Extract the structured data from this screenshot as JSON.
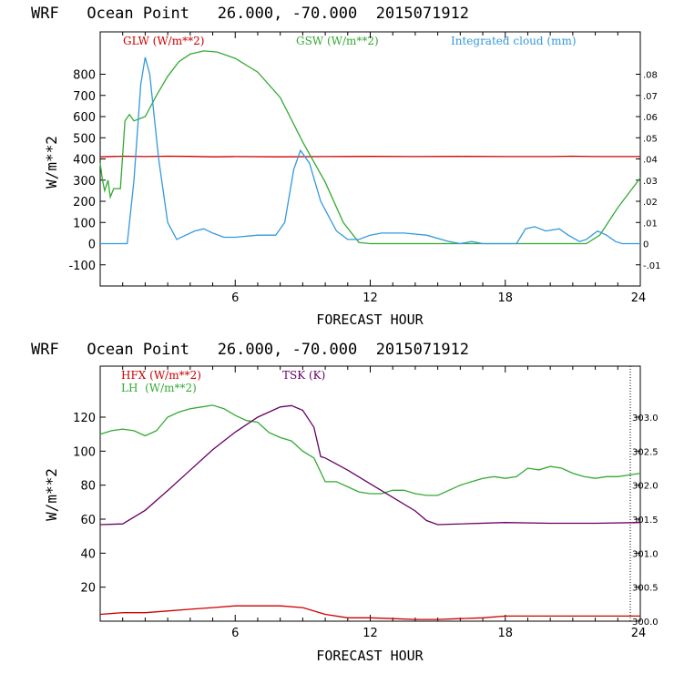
{
  "chart_data": [
    {
      "type": "line",
      "title": "WRF   Ocean Point   26.000, -70.000  2015071912",
      "xlabel": "FORECAST HOUR",
      "ylabel": "W/m**2",
      "xlim": [
        0,
        24
      ],
      "ylim": [
        -200,
        1000
      ],
      "y2lim": [
        -0.02,
        0.1
      ],
      "x_ticks": [
        "6",
        "12",
        "18",
        "24"
      ],
      "y_ticks": [
        "-100",
        "0",
        "100",
        "200",
        "300",
        "400",
        "500",
        "600",
        "700",
        "800"
      ],
      "y2_ticks": [
        "-.01",
        "0",
        ".01",
        ".02",
        ".03",
        ".04",
        ".05",
        ".06",
        ".07",
        ".08"
      ],
      "series": [
        {
          "name": "GLW (W/m**2)",
          "color": "#cc0000",
          "axis": "left",
          "points": [
            [
              0,
              410
            ],
            [
              1,
              413
            ],
            [
              2,
              411
            ],
            [
              3,
              413
            ],
            [
              4,
              412
            ],
            [
              5,
              410
            ],
            [
              6,
              411
            ],
            [
              8,
              410
            ],
            [
              10,
              411
            ],
            [
              12,
              412
            ],
            [
              14,
              411
            ],
            [
              16,
              412
            ],
            [
              18,
              411
            ],
            [
              20,
              411
            ],
            [
              21,
              413
            ],
            [
              22,
              411
            ],
            [
              24,
              411
            ]
          ]
        },
        {
          "name": "GSW (W/m**2)",
          "color": "#33aa33",
          "axis": "left",
          "points": [
            [
              0,
              380
            ],
            [
              0.1,
              300
            ],
            [
              0.2,
              250
            ],
            [
              0.35,
              300
            ],
            [
              0.45,
              220
            ],
            [
              0.6,
              260
            ],
            [
              0.9,
              260
            ],
            [
              1.1,
              580
            ],
            [
              1.3,
              610
            ],
            [
              1.5,
              580
            ],
            [
              2,
              600
            ],
            [
              2.5,
              700
            ],
            [
              3,
              790
            ],
            [
              3.5,
              860
            ],
            [
              4,
              895
            ],
            [
              4.6,
              910
            ],
            [
              5.2,
              905
            ],
            [
              6,
              875
            ],
            [
              7,
              810
            ],
            [
              8,
              690
            ],
            [
              9,
              480
            ],
            [
              10,
              290
            ],
            [
              10.8,
              100
            ],
            [
              11.5,
              5
            ],
            [
              12,
              0
            ],
            [
              21.6,
              0
            ],
            [
              22.2,
              40
            ],
            [
              23,
              170
            ],
            [
              24,
              310
            ]
          ]
        },
        {
          "name": "Integrated cloud (mm)",
          "color": "#3399dd",
          "axis": "right",
          "points": [
            [
              0,
              0
            ],
            [
              1.2,
              0
            ],
            [
              1.5,
              0.03
            ],
            [
              1.8,
              0.075
            ],
            [
              2,
              0.088
            ],
            [
              2.2,
              0.08
            ],
            [
              2.6,
              0.04
            ],
            [
              3,
              0.01
            ],
            [
              3.4,
              0.002
            ],
            [
              3.8,
              0.004
            ],
            [
              4.2,
              0.006
            ],
            [
              4.6,
              0.007
            ],
            [
              5,
              0.005
            ],
            [
              5.5,
              0.003
            ],
            [
              6,
              0.003
            ],
            [
              7,
              0.004
            ],
            [
              7.8,
              0.004
            ],
            [
              8.2,
              0.01
            ],
            [
              8.6,
              0.035
            ],
            [
              8.9,
              0.044
            ],
            [
              9.3,
              0.038
            ],
            [
              9.8,
              0.02
            ],
            [
              10.5,
              0.006
            ],
            [
              11,
              0.002
            ],
            [
              11.5,
              0.002
            ],
            [
              12,
              0.004
            ],
            [
              12.5,
              0.005
            ],
            [
              13.5,
              0.005
            ],
            [
              14.5,
              0.004
            ],
            [
              15.5,
              0.001
            ],
            [
              16,
              0
            ],
            [
              16.5,
              0.001
            ],
            [
              17,
              0
            ],
            [
              18.5,
              0
            ],
            [
              18.9,
              0.007
            ],
            [
              19.3,
              0.008
            ],
            [
              19.8,
              0.006
            ],
            [
              20.4,
              0.007
            ],
            [
              20.8,
              0.004
            ],
            [
              21.3,
              0.001
            ],
            [
              21.6,
              0.002
            ],
            [
              22.1,
              0.006
            ],
            [
              22.5,
              0.004
            ],
            [
              22.9,
              0.001
            ],
            [
              23.2,
              0
            ],
            [
              24,
              0
            ]
          ]
        }
      ]
    },
    {
      "type": "line",
      "title": "WRF   Ocean Point   26.000, -70.000  2015071912",
      "xlabel": "FORECAST HOUR",
      "ylabel": "W/m**2",
      "xlim": [
        0,
        24
      ],
      "ylim": [
        0,
        150
      ],
      "y2lim": [
        300,
        303.75
      ],
      "x_ticks": [
        "6",
        "12",
        "18",
        "24"
      ],
      "y_ticks": [
        "20",
        "40",
        "60",
        "80",
        "100",
        "120"
      ],
      "y2_ticks": [
        "300.0",
        "300.5",
        "301.0",
        "301.5",
        "302.0",
        "302.5",
        "303.0"
      ],
      "series": [
        {
          "name": "HFX (W/m**2)",
          "color": "#cc0000",
          "axis": "left",
          "points": [
            [
              0,
              4
            ],
            [
              1,
              5
            ],
            [
              2,
              5
            ],
            [
              3,
              6
            ],
            [
              4,
              7
            ],
            [
              5,
              8
            ],
            [
              6,
              9
            ],
            [
              7,
              9
            ],
            [
              8,
              9
            ],
            [
              9,
              8
            ],
            [
              10,
              4
            ],
            [
              11,
              2
            ],
            [
              12,
              2
            ],
            [
              13,
              1.5
            ],
            [
              14,
              1
            ],
            [
              15,
              1
            ],
            [
              16,
              1.5
            ],
            [
              17,
              2
            ],
            [
              18,
              3
            ],
            [
              20,
              3
            ],
            [
              22,
              3
            ],
            [
              23,
              3
            ],
            [
              24,
              3
            ]
          ]
        },
        {
          "name": "LH (W/m**2)",
          "color": "#33aa33",
          "axis": "left",
          "points": [
            [
              0,
              110
            ],
            [
              0.5,
              112
            ],
            [
              1,
              113
            ],
            [
              1.5,
              112
            ],
            [
              2,
              109
            ],
            [
              2.5,
              112
            ],
            [
              3,
              120
            ],
            [
              3.5,
              123
            ],
            [
              4,
              125
            ],
            [
              4.5,
              126
            ],
            [
              5,
              127
            ],
            [
              5.5,
              125
            ],
            [
              6,
              121
            ],
            [
              6.5,
              118
            ],
            [
              7,
              117
            ],
            [
              7.5,
              111
            ],
            [
              8,
              108
            ],
            [
              8.5,
              106
            ],
            [
              9,
              100
            ],
            [
              9.5,
              96
            ],
            [
              10,
              82
            ],
            [
              10.5,
              82
            ],
            [
              11,
              79
            ],
            [
              11.5,
              76
            ],
            [
              12,
              75
            ],
            [
              12.5,
              75
            ],
            [
              13,
              77
            ],
            [
              13.5,
              77
            ],
            [
              14,
              75
            ],
            [
              14.5,
              74
            ],
            [
              15,
              74
            ],
            [
              15.5,
              77
            ],
            [
              16,
              80
            ],
            [
              16.5,
              82
            ],
            [
              17,
              84
            ],
            [
              17.5,
              85
            ],
            [
              18,
              84
            ],
            [
              18.5,
              85
            ],
            [
              19,
              90
            ],
            [
              19.5,
              89
            ],
            [
              20,
              91
            ],
            [
              20.5,
              90
            ],
            [
              21,
              87
            ],
            [
              21.5,
              85
            ],
            [
              22,
              84
            ],
            [
              22.5,
              85
            ],
            [
              23,
              85
            ],
            [
              23.5,
              86
            ],
            [
              24,
              87
            ]
          ]
        },
        {
          "name": "TSK (K)",
          "color": "#660066",
          "axis": "right",
          "points": [
            [
              0,
              301.42
            ],
            [
              1,
              301.43
            ],
            [
              2,
              301.63
            ],
            [
              3,
              301.92
            ],
            [
              4,
              302.22
            ],
            [
              5,
              302.52
            ],
            [
              6,
              302.78
            ],
            [
              7,
              303.0
            ],
            [
              8,
              303.15
            ],
            [
              8.5,
              303.17
            ],
            [
              9,
              303.1
            ],
            [
              9.5,
              302.85
            ],
            [
              9.8,
              302.42
            ],
            [
              10,
              302.4
            ],
            [
              11,
              302.22
            ],
            [
              12,
              302.02
            ],
            [
              13,
              301.82
            ],
            [
              14,
              301.62
            ],
            [
              14.5,
              301.48
            ],
            [
              15,
              301.42
            ],
            [
              18,
              301.45
            ],
            [
              20,
              301.44
            ],
            [
              22,
              301.44
            ],
            [
              24,
              301.45
            ]
          ]
        }
      ]
    }
  ],
  "chart1": {
    "title": "WRF   Ocean Point   26.000, -70.000  2015071912",
    "xlabel": "FORECAST HOUR",
    "ylabel": "W/m**2",
    "legend": [
      "GLW (W/m**2)",
      "GSW (W/m**2)",
      "Integrated cloud (mm)"
    ]
  },
  "chart2": {
    "title": "WRF   Ocean Point   26.000, -70.000  2015071912",
    "xlabel": "FORECAST HOUR",
    "ylabel": "W/m**2",
    "legend": [
      "HFX (W/m**2)",
      "LH  (W/m**2)",
      "TSK (K)"
    ]
  }
}
